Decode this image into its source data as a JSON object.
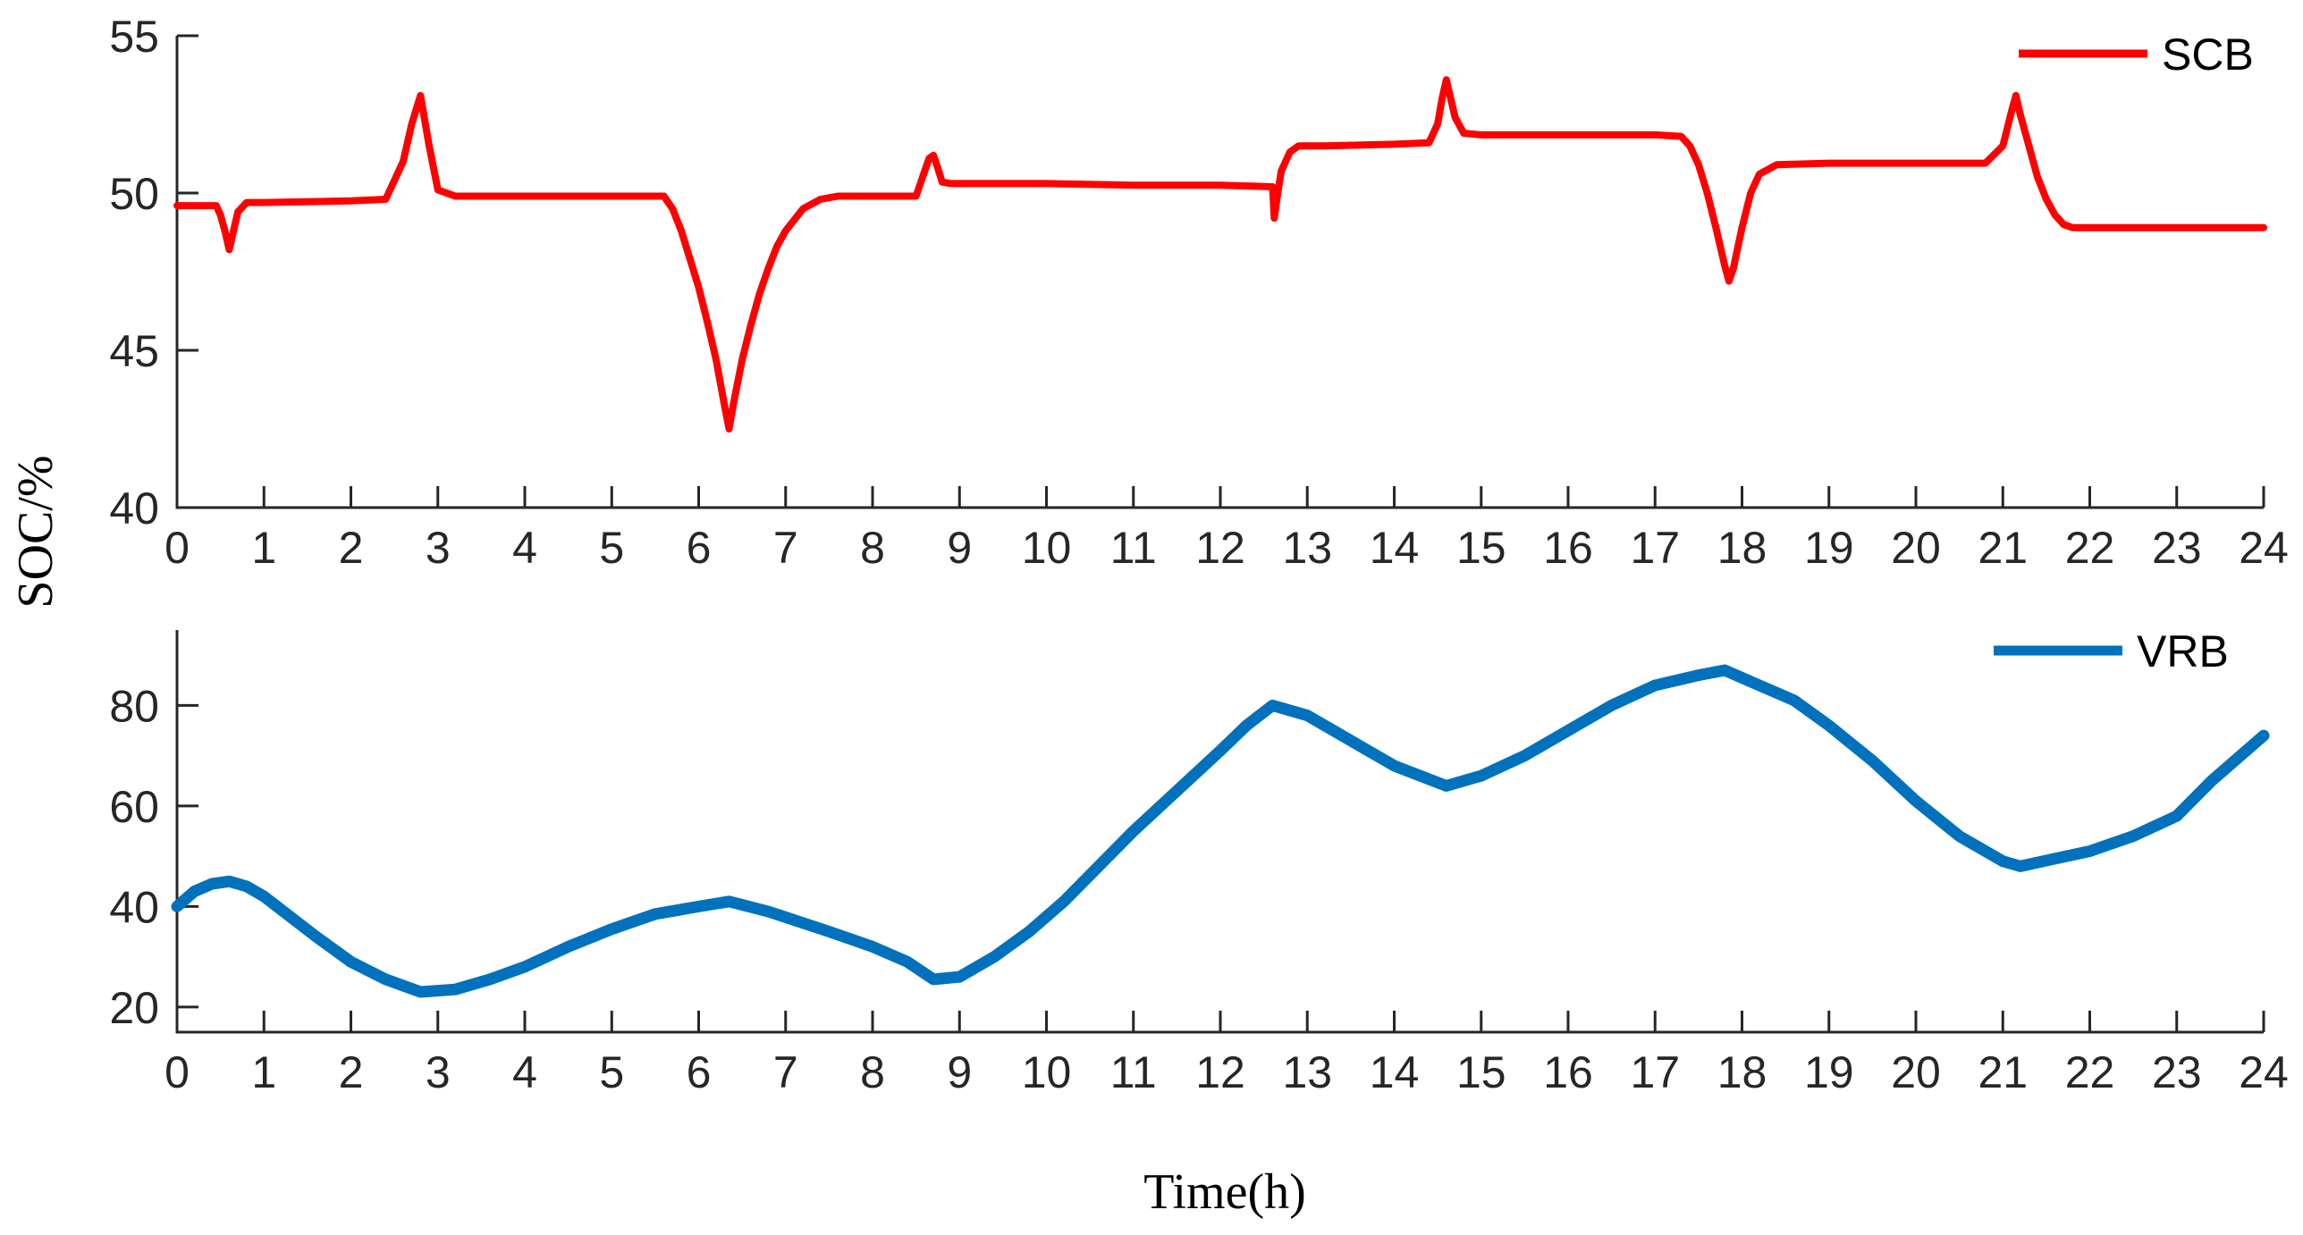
{
  "chart_data": [
    {
      "type": "line",
      "id": "scb",
      "xlabel": "Time(h)",
      "ylabel": "SOC/%",
      "xlim": [
        0,
        24
      ],
      "ylim": [
        40,
        55
      ],
      "x_ticks": [
        0,
        1,
        2,
        3,
        4,
        5,
        6,
        7,
        8,
        9,
        10,
        11,
        12,
        13,
        14,
        15,
        16,
        17,
        18,
        19,
        20,
        21,
        22,
        23,
        24
      ],
      "y_ticks": [
        40,
        45,
        50,
        55
      ],
      "grid": false,
      "legend_position": "top-right",
      "series": [
        {
          "name": "SCB",
          "color": "#ff0000",
          "x": [
            0,
            0.45,
            0.5,
            0.55,
            0.6,
            0.65,
            0.7,
            0.8,
            1,
            2,
            2.4,
            2.6,
            2.7,
            2.8,
            2.9,
            3.0,
            3.2,
            4,
            5,
            5.6,
            5.7,
            5.8,
            5.9,
            6.0,
            6.1,
            6.2,
            6.3,
            6.35,
            6.4,
            6.5,
            6.6,
            6.7,
            6.8,
            6.9,
            7.0,
            7.2,
            7.4,
            7.6,
            8,
            8.5,
            8.6,
            8.65,
            8.7,
            8.75,
            8.8,
            8.9,
            9,
            10,
            11,
            12,
            12.6,
            12.62,
            12.65,
            12.7,
            12.8,
            12.9,
            13,
            13.2,
            14,
            14.4,
            14.5,
            14.55,
            14.6,
            14.65,
            14.7,
            14.8,
            15,
            16,
            17,
            17.3,
            17.4,
            17.5,
            17.6,
            17.7,
            17.8,
            17.85,
            17.9,
            18.0,
            18.1,
            18.2,
            18.4,
            19,
            20,
            20.8,
            21.0,
            21.1,
            21.15,
            21.2,
            21.3,
            21.4,
            21.5,
            21.6,
            21.7,
            21.8,
            22,
            23,
            24
          ],
          "y": [
            49.6,
            49.6,
            49.3,
            48.8,
            48.2,
            48.8,
            49.4,
            49.7,
            49.7,
            49.75,
            49.8,
            51.0,
            52.2,
            53.1,
            51.5,
            50.1,
            49.9,
            49.9,
            49.9,
            49.9,
            49.5,
            48.8,
            47.9,
            47.0,
            45.9,
            44.7,
            43.2,
            42.5,
            43.3,
            44.7,
            45.8,
            46.8,
            47.6,
            48.3,
            48.8,
            49.5,
            49.8,
            49.9,
            49.9,
            49.9,
            50.7,
            51.1,
            51.2,
            50.8,
            50.35,
            50.3,
            50.3,
            50.3,
            50.25,
            50.25,
            50.2,
            49.2,
            49.8,
            50.7,
            51.3,
            51.5,
            51.5,
            51.5,
            51.55,
            51.6,
            52.2,
            53.0,
            53.6,
            53.0,
            52.4,
            51.9,
            51.85,
            51.85,
            51.85,
            51.8,
            51.5,
            50.9,
            50.0,
            48.9,
            47.7,
            47.2,
            47.6,
            48.9,
            50.0,
            50.6,
            50.9,
            50.95,
            50.95,
            50.95,
            51.5,
            52.6,
            53.1,
            52.5,
            51.5,
            50.5,
            49.8,
            49.3,
            49.0,
            48.9,
            48.9,
            48.9,
            48.9
          ]
        }
      ]
    },
    {
      "type": "line",
      "id": "vrb",
      "xlabel": "Time(h)",
      "ylabel": "SOC/%",
      "xlim": [
        0,
        24
      ],
      "ylim": [
        15,
        95
      ],
      "x_ticks": [
        0,
        1,
        2,
        3,
        4,
        5,
        6,
        7,
        8,
        9,
        10,
        11,
        12,
        13,
        14,
        15,
        16,
        17,
        18,
        19,
        20,
        21,
        22,
        23,
        24
      ],
      "y_ticks": [
        20,
        40,
        60,
        80
      ],
      "grid": false,
      "legend_position": "top-right",
      "series": [
        {
          "name": "VRB",
          "color": "#0072bd",
          "x": [
            0,
            0.2,
            0.4,
            0.6,
            0.8,
            1,
            1.3,
            1.6,
            2,
            2.4,
            2.8,
            3.2,
            3.6,
            4,
            4.5,
            5,
            5.5,
            6,
            6.35,
            6.8,
            7.5,
            8,
            8.4,
            8.7,
            9.0,
            9.4,
            9.8,
            10.2,
            10.6,
            11,
            11.5,
            12,
            12.3,
            12.6,
            13,
            13.5,
            14,
            14.6,
            15.0,
            15.5,
            16,
            16.5,
            17,
            17.5,
            17.8,
            18.2,
            18.6,
            19,
            19.5,
            20,
            20.5,
            21,
            21.2,
            21.6,
            22,
            22.5,
            23,
            23.4,
            23.8,
            24
          ],
          "y": [
            40,
            43,
            44.5,
            45,
            44,
            42,
            38,
            34,
            29,
            25.5,
            23,
            23.5,
            25.5,
            28,
            32,
            35.5,
            38.5,
            40,
            41,
            39,
            35,
            32,
            29,
            25.5,
            26,
            30,
            35,
            41,
            48,
            55,
            63,
            71,
            76,
            80,
            78,
            73,
            68,
            64,
            66,
            70,
            75,
            80,
            84,
            86,
            87,
            84,
            81,
            76,
            69,
            61,
            54,
            49,
            48,
            49.5,
            51,
            54,
            58,
            65,
            71,
            74
          ]
        }
      ]
    }
  ]
}
